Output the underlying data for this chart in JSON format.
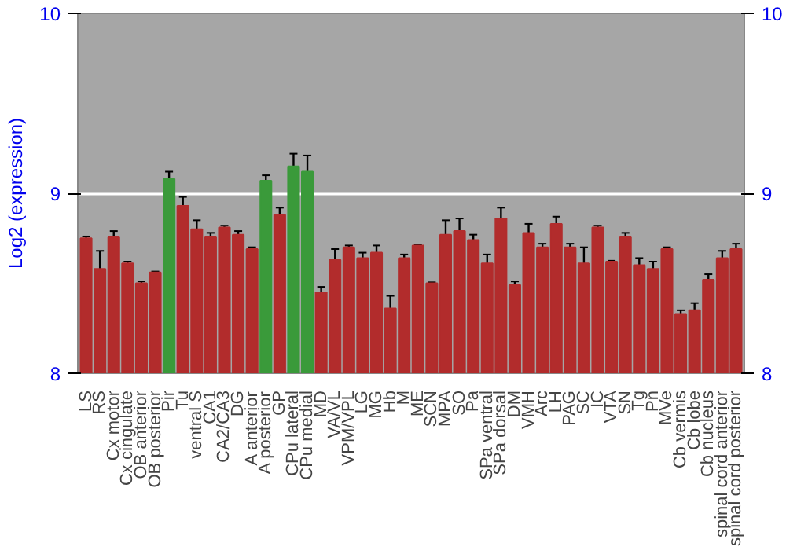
{
  "chart_data": {
    "type": "bar",
    "ylabel": "Log2 (expression)",
    "categories": [
      "LS",
      "RS",
      "Cx motor",
      "Cx cingulate",
      "OB anterior",
      "OB posterior",
      "Pir",
      "Tu",
      "ventral S",
      "CA1",
      "CA2/CA3",
      "DG",
      "A anterior",
      "A posterior",
      "GP",
      "CPu lateral",
      "CPu medial",
      "MD",
      "VA/VL",
      "VPM/VPL",
      "LG",
      "MG",
      "Hb",
      "M",
      "ME",
      "SCN",
      "MPA",
      "SO",
      "Pa",
      "SPa ventral",
      "SPa dorsal",
      "DM",
      "VMH",
      "Arc",
      "LH",
      "PAG",
      "SC",
      "IC",
      "VTA",
      "SN",
      "Tg",
      "Pn",
      "MVe",
      "Cb vermis",
      "Cb lobe",
      "Cb nucleus",
      "spinal cord anterior",
      "spinal cord posterior"
    ],
    "values": [
      8.75,
      8.58,
      8.76,
      8.61,
      8.5,
      8.56,
      9.08,
      8.93,
      8.8,
      8.76,
      8.81,
      8.77,
      8.69,
      9.07,
      8.88,
      9.15,
      9.12,
      8.45,
      8.63,
      8.7,
      8.64,
      8.67,
      8.36,
      8.64,
      8.71,
      8.5,
      8.77,
      8.79,
      8.74,
      8.61,
      8.86,
      8.49,
      8.78,
      8.7,
      8.83,
      8.7,
      8.61,
      8.81,
      8.62,
      8.76,
      8.6,
      8.58,
      8.69,
      8.33,
      8.35,
      8.52,
      8.64,
      8.69
    ],
    "colors": [
      "#b22c2c",
      "#b22c2c",
      "#b22c2c",
      "#b22c2c",
      "#b22c2c",
      "#b22c2c",
      "#3a9a3a",
      "#b22c2c",
      "#b22c2c",
      "#b22c2c",
      "#b22c2c",
      "#b22c2c",
      "#b22c2c",
      "#3a9a3a",
      "#b22c2c",
      "#3a9a3a",
      "#3a9a3a",
      "#b22c2c",
      "#b22c2c",
      "#b22c2c",
      "#b22c2c",
      "#b22c2c",
      "#b22c2c",
      "#b22c2c",
      "#b22c2c",
      "#b22c2c",
      "#b22c2c",
      "#b22c2c",
      "#b22c2c",
      "#b22c2c",
      "#b22c2c",
      "#b22c2c",
      "#b22c2c",
      "#b22c2c",
      "#b22c2c",
      "#b22c2c",
      "#b22c2c",
      "#b22c2c",
      "#b22c2c",
      "#b22c2c",
      "#b22c2c",
      "#b22c2c",
      "#b22c2c",
      "#b22c2c",
      "#b22c2c",
      "#b22c2c",
      "#b22c2c",
      "#b22c2c"
    ],
    "errors": [
      0.01,
      0.1,
      0.03,
      0.01,
      0.01,
      0.005,
      0.04,
      0.05,
      0.05,
      0.02,
      0.01,
      0.02,
      0.01,
      0.03,
      0.04,
      0.07,
      0.09,
      0.03,
      0.06,
      0.01,
      0.03,
      0.04,
      0.07,
      0.02,
      0.005,
      0.005,
      0.08,
      0.07,
      0.03,
      0.05,
      0.06,
      0.02,
      0.05,
      0.02,
      0.04,
      0.02,
      0.09,
      0.01,
      0.005,
      0.02,
      0.04,
      0.04,
      0.01,
      0.02,
      0.04,
      0.03,
      0.04,
      0.03
    ],
    "ylim": [
      8,
      10
    ],
    "yticks": [
      8,
      9,
      10
    ],
    "y2lim": [
      8,
      10
    ],
    "y2ticks": [
      8,
      9,
      10
    ],
    "grid": "y"
  }
}
